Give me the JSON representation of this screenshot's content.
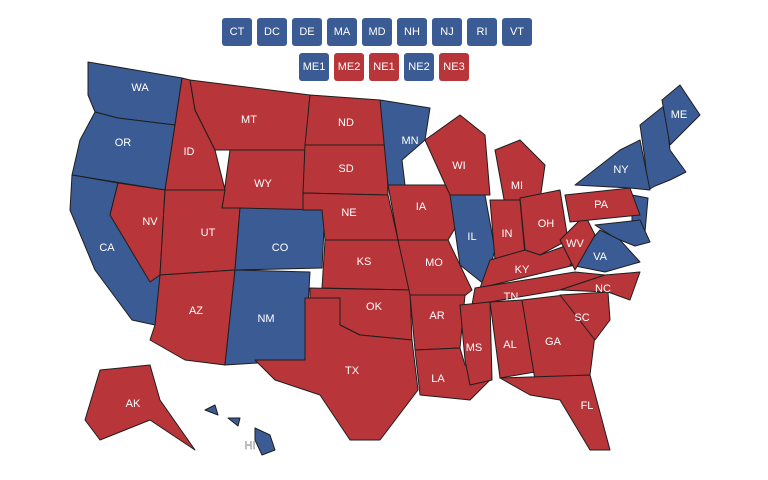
{
  "buttons": [
    [
      {
        "label": "CT",
        "color": "#3b5b94"
      },
      {
        "label": "DC",
        "color": "#3b5b94"
      },
      {
        "label": "DE",
        "color": "#3b5b94"
      },
      {
        "label": "MA",
        "color": "#3b5b94"
      },
      {
        "label": "MD",
        "color": "#3b5b94"
      },
      {
        "label": "NH",
        "color": "#3b5b94"
      },
      {
        "label": "NJ",
        "color": "#3b5b94"
      },
      {
        "label": "RI",
        "color": "#3b5b94"
      },
      {
        "label": "VT",
        "color": "#3b5b94"
      }
    ],
    [
      {
        "label": "ME1",
        "color": "#3b5b94"
      },
      {
        "label": "ME2",
        "color": "#b8353a"
      },
      {
        "label": "NE1",
        "color": "#b8353a"
      },
      {
        "label": "NE2",
        "color": "#3b5b94"
      },
      {
        "label": "NE3",
        "color": "#b8353a"
      }
    ]
  ],
  "states": [
    {
      "label": "WA",
      "color": "#3b5b94"
    },
    {
      "label": "OR",
      "color": "#3b5b94"
    },
    {
      "label": "CA",
      "color": "#3b5b94"
    },
    {
      "label": "NV",
      "color": "#b8353a"
    },
    {
      "label": "ID",
      "color": "#b8353a"
    },
    {
      "label": "MT",
      "color": "#b8353a"
    },
    {
      "label": "WY",
      "color": "#b8353a"
    },
    {
      "label": "UT",
      "color": "#b8353a"
    },
    {
      "label": "CO",
      "color": "#3b5b94"
    },
    {
      "label": "AZ",
      "color": "#b8353a"
    },
    {
      "label": "NM",
      "color": "#3b5b94"
    },
    {
      "label": "ND",
      "color": "#b8353a"
    },
    {
      "label": "SD",
      "color": "#b8353a"
    },
    {
      "label": "NE",
      "color": "#b8353a"
    },
    {
      "label": "KS",
      "color": "#b8353a"
    },
    {
      "label": "OK",
      "color": "#b8353a"
    },
    {
      "label": "TX",
      "color": "#b8353a"
    },
    {
      "label": "MN",
      "color": "#3b5b94"
    },
    {
      "label": "IA",
      "color": "#b8353a"
    },
    {
      "label": "MO",
      "color": "#b8353a"
    },
    {
      "label": "AR",
      "color": "#b8353a"
    },
    {
      "label": "LA",
      "color": "#b8353a"
    },
    {
      "label": "WI",
      "color": "#b8353a"
    },
    {
      "label": "IL",
      "color": "#3b5b94"
    },
    {
      "label": "MI",
      "color": "#b8353a"
    },
    {
      "label": "IN",
      "color": "#b8353a"
    },
    {
      "label": "OH",
      "color": "#b8353a"
    },
    {
      "label": "KY",
      "color": "#b8353a"
    },
    {
      "label": "TN",
      "color": "#b8353a"
    },
    {
      "label": "MS",
      "color": "#b8353a"
    },
    {
      "label": "AL",
      "color": "#b8353a"
    },
    {
      "label": "GA",
      "color": "#b8353a"
    },
    {
      "label": "FL",
      "color": "#b8353a"
    },
    {
      "label": "SC",
      "color": "#b8353a"
    },
    {
      "label": "NC",
      "color": "#b8353a"
    },
    {
      "label": "VA",
      "color": "#3b5b94"
    },
    {
      "label": "WV",
      "color": "#b8353a"
    },
    {
      "label": "PA",
      "color": "#b8353a"
    },
    {
      "label": "NY",
      "color": "#3b5b94"
    },
    {
      "label": "ME",
      "color": "#3b5b94"
    },
    {
      "label": "AK",
      "color": "#b8353a"
    },
    {
      "label": "HI",
      "color": "#3b5b94"
    }
  ]
}
